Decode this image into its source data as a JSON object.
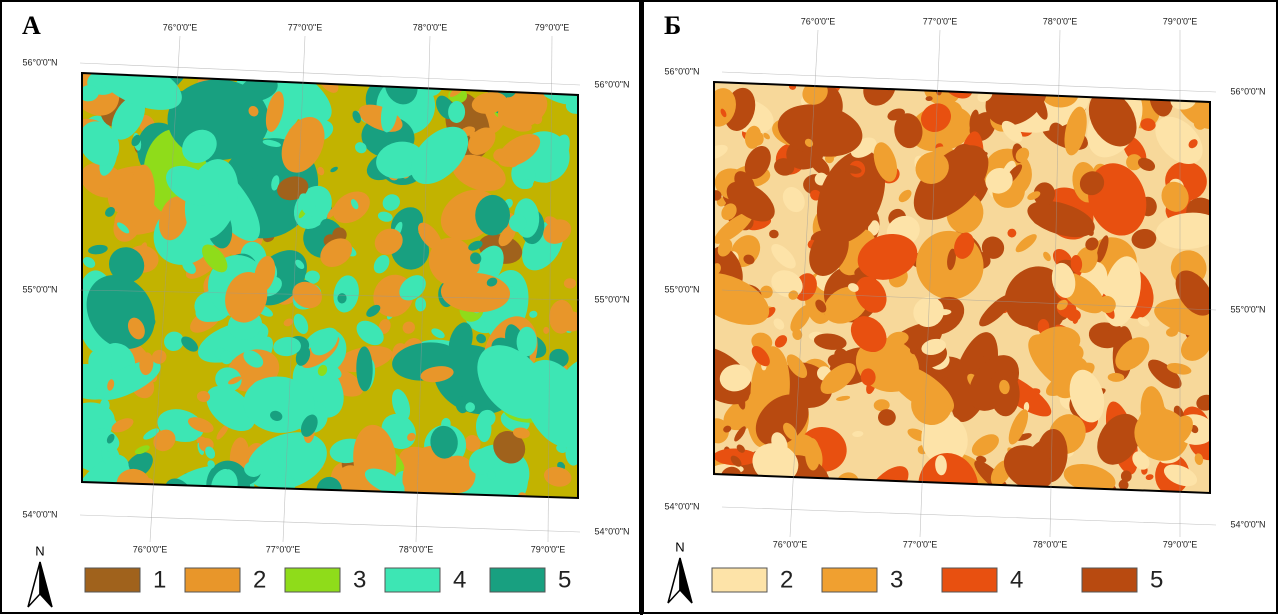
{
  "panels": [
    {
      "label": "А",
      "top_lon_labels": [
        "76°0'0\"E",
        "77°0'0\"E",
        "78°0'0\"E",
        "79°0'0\"E"
      ],
      "bottom_lon_labels": [
        "76°0'0\"E",
        "77°0'0\"E",
        "78°0'0\"E",
        "79°0'0\"E"
      ],
      "left_lat_labels": [
        "56°0'0\"N",
        "55°0'0\"N",
        "54°0'0\"N"
      ],
      "right_lat_labels": [
        "56°0'0\"N",
        "55°0'0\"N",
        "54°0'0\"N"
      ],
      "north": "N",
      "legend": [
        {
          "label": "1",
          "color": "#a0621c"
        },
        {
          "label": "2",
          "color": "#e8962a"
        },
        {
          "label": "3",
          "color": "#8fdc1a"
        },
        {
          "label": "4",
          "color": "#3de6b4"
        },
        {
          "label": "5",
          "color": "#18a080"
        }
      ]
    },
    {
      "label": "Б",
      "top_lon_labels": [
        "76°0'0\"E",
        "77°0'0\"E",
        "78°0'0\"E",
        "79°0'0\"E"
      ],
      "bottom_lon_labels": [
        "76°0'0\"E",
        "77°0'0\"E",
        "78°0'0\"E",
        "79°0'0\"E"
      ],
      "left_lat_labels": [
        "56°0'0\"N",
        "55°0'0\"N",
        "54°0'0\"N"
      ],
      "right_lat_labels": [
        "56°0'0\"N",
        "55°0'0\"N",
        "54°0'0\"N"
      ],
      "north": "N",
      "legend": [
        {
          "label": "2",
          "color": "#fde3a8"
        },
        {
          "label": "3",
          "color": "#f0a030"
        },
        {
          "label": "4",
          "color": "#e85010"
        },
        {
          "label": "5",
          "color": "#b84a10"
        }
      ]
    }
  ]
}
